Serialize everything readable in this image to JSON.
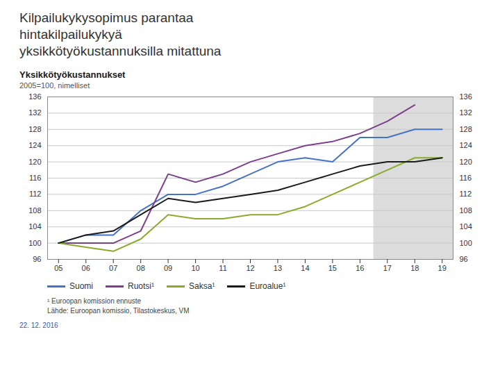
{
  "chart_data": {
    "type": "line",
    "title": [
      "Kilpailukykysopimus parantaa",
      "hintakilpailukykyä",
      "yksikkötyökustannuksilla mitattuna"
    ],
    "subtitle": [
      "Yksikkötyökustannukset",
      "2005=100, nimelliset"
    ],
    "annotations": [
      "¹ Euroopan komission ennuste",
      "Lähde: Euroopan komissio, Tilastokeskus, VM",
      "22. 12. 2016"
    ],
    "x": [
      2005,
      2006,
      2007,
      2008,
      2009,
      2010,
      2011,
      2012,
      2013,
      2014,
      2015,
      2016,
      2017,
      2018,
      2019
    ],
    "series": [
      {
        "name": "Suomi",
        "color": "#4472c4",
        "values": [
          100,
          102,
          102,
          108,
          112,
          112,
          114,
          117,
          120,
          121,
          120,
          126,
          126,
          128,
          128
        ]
      },
      {
        "name": "Ruotsi¹",
        "color": "#7b3f8c",
        "values": [
          100,
          100,
          100,
          103,
          117,
          115,
          117,
          120,
          122,
          124,
          125,
          127,
          130,
          134,
          null
        ]
      },
      {
        "name": "Saksa¹",
        "color": "#8aab2a",
        "values": [
          100,
          99,
          98,
          101,
          107,
          106,
          106,
          107,
          107,
          109,
          112,
          115,
          118,
          121,
          121
        ]
      },
      {
        "name": "Euroalue¹",
        "color": "#1a1a1a",
        "values": [
          100,
          102,
          103,
          107,
          111,
          110,
          111,
          112,
          113,
          115,
          117,
          119,
          120,
          120,
          121
        ]
      }
    ],
    "shaded_region": {
      "from": 2016.5,
      "to": 2019.4,
      "color": "#dcdcdc"
    },
    "xlim": [
      2004.6,
      2019.4
    ],
    "xticks": [
      {
        "value": 2005,
        "label": "05"
      },
      {
        "value": 2006,
        "label": "06"
      },
      {
        "value": 2007,
        "label": "07"
      },
      {
        "value": 2008,
        "label": "08"
      },
      {
        "value": 2009,
        "label": "09"
      },
      {
        "value": 2010,
        "label": "10"
      },
      {
        "value": 2011,
        "label": "11"
      },
      {
        "value": 2012,
        "label": "12"
      },
      {
        "value": 2013,
        "label": "13"
      },
      {
        "value": 2014,
        "label": "14"
      },
      {
        "value": 2015,
        "label": "15"
      },
      {
        "value": 2016,
        "label": "16"
      },
      {
        "value": 2017,
        "label": "17"
      },
      {
        "value": 2018,
        "label": "18"
      },
      {
        "value": 2019,
        "label": "19"
      }
    ],
    "ylim": [
      96,
      136
    ],
    "yticks": [
      96,
      100,
      104,
      108,
      112,
      116,
      120,
      124,
      128,
      132,
      136
    ],
    "grid": "y",
    "legend": "bottom"
  }
}
